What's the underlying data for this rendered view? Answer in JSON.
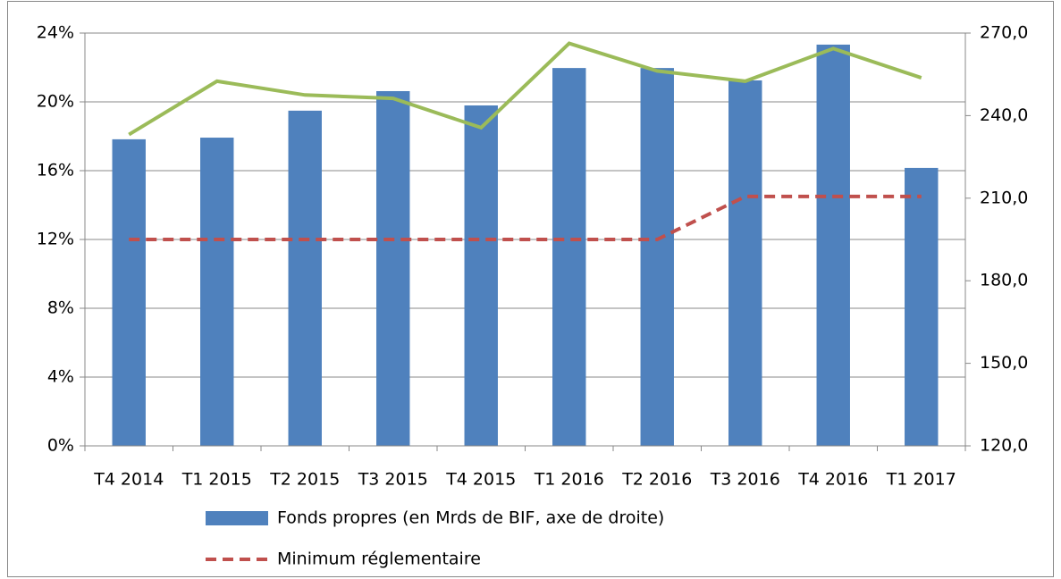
{
  "chart_data": {
    "type": "bar",
    "categories": [
      "T4 2014",
      "T1 2015",
      "T2 2015",
      "T3 2015",
      "T4 2015",
      "T1 2016",
      "T2 2016",
      "T3 2016",
      "T4 2016",
      "T1 2017"
    ],
    "series": [
      {
        "name": "Fonds propres (en Mrds de BIF, axe de droite)",
        "type": "bar",
        "axis": "y2",
        "color": "#4f81bd",
        "values": [
          231.4,
          232.0,
          241.8,
          248.9,
          243.7,
          257.3,
          257.3,
          252.8,
          265.8,
          221.0
        ]
      },
      {
        "name": "Minimum réglementaire",
        "type": "line",
        "dashed": true,
        "color": "#c0504d",
        "values": [
          12,
          12,
          12,
          12,
          12,
          12,
          12,
          14.5,
          14.5,
          14.5
        ]
      },
      {
        "type": "line",
        "color": "#9bbb59",
        "values": [
          18.1,
          21.2,
          20.4,
          20.2,
          18.5,
          23.4,
          21.8,
          21.2,
          23.1,
          21.4
        ]
      }
    ],
    "ylim": [
      0,
      24
    ],
    "yticks": [
      {
        "value": 0,
        "label": "0%"
      },
      {
        "value": 4,
        "label": "4%"
      },
      {
        "value": 8,
        "label": "8%"
      },
      {
        "value": 12,
        "label": "12%"
      },
      {
        "value": 16,
        "label": "16%"
      },
      {
        "value": 20,
        "label": "20%"
      },
      {
        "value": 24,
        "label": "24%"
      }
    ],
    "y2lim": [
      120,
      270
    ],
    "y2ticks": [
      {
        "value": 120,
        "label": "120,0"
      },
      {
        "value": 150,
        "label": "150,0"
      },
      {
        "value": 180,
        "label": "180,0"
      },
      {
        "value": 210,
        "label": "210,0"
      },
      {
        "value": 240,
        "label": "240,0"
      },
      {
        "value": 270,
        "label": "270,0"
      }
    ],
    "grid": true,
    "legend": "bottom"
  }
}
